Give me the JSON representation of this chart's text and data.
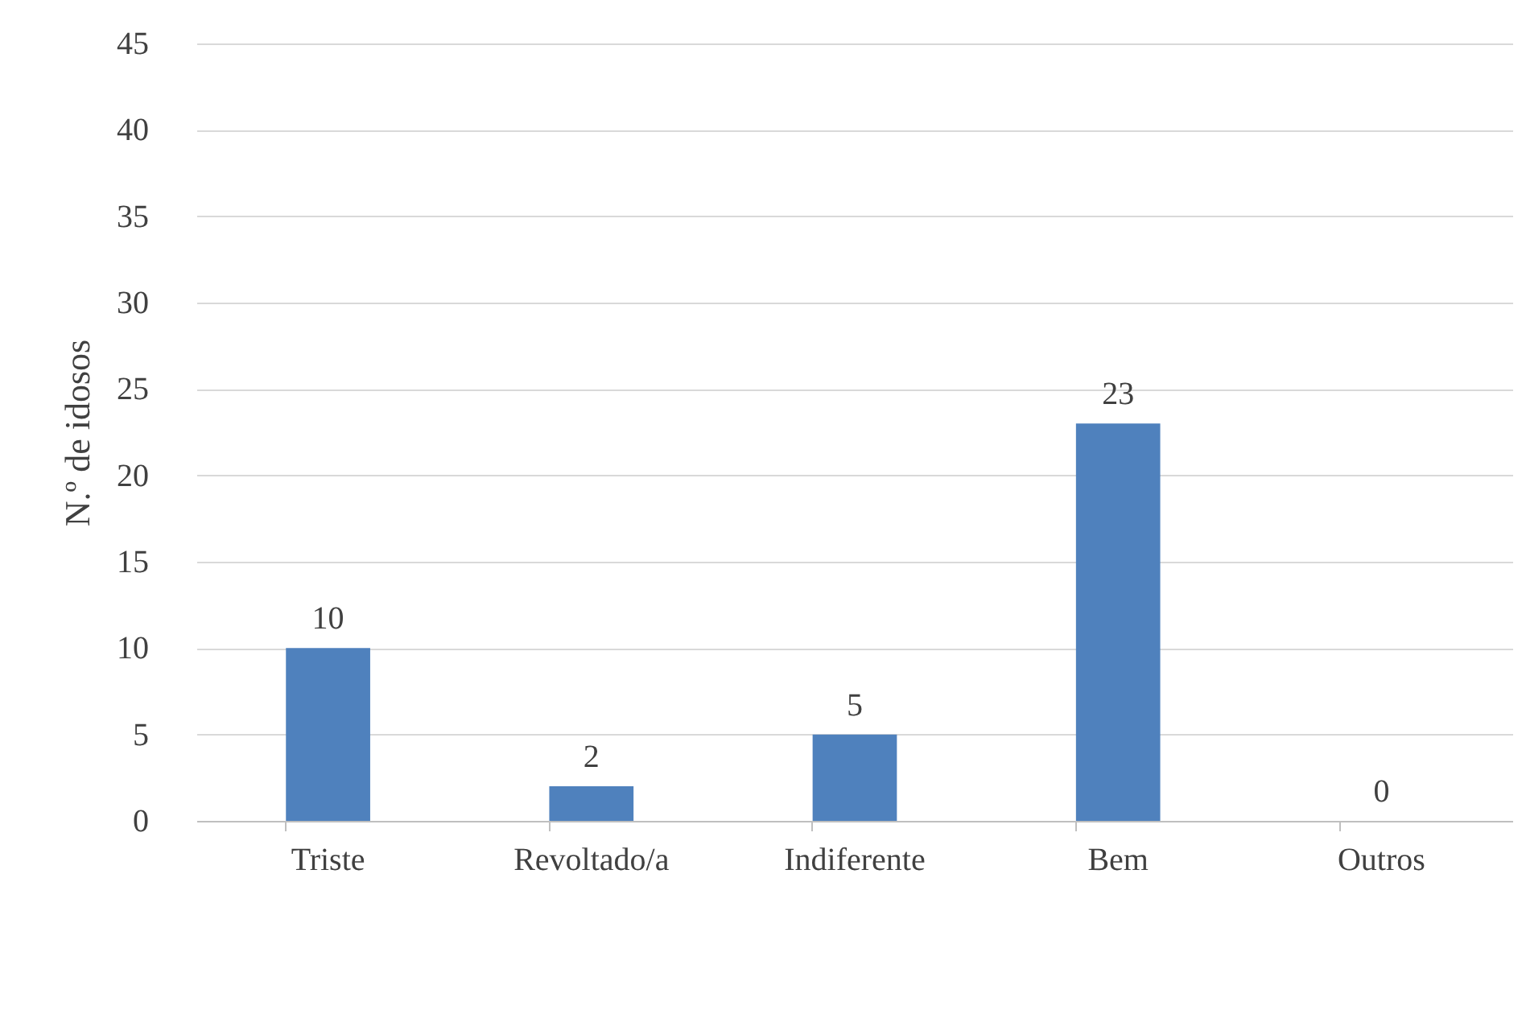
{
  "chart_data": {
    "type": "bar",
    "ylabel": "N.º de idosos",
    "categories": [
      "Triste",
      "Revoltado/a",
      "Indiferente",
      "Bem",
      "Outros"
    ],
    "values": [
      10,
      2,
      5,
      23,
      0
    ],
    "color": "#4f81bd",
    "ylim": [
      0,
      45
    ],
    "yticks": [
      0,
      5,
      10,
      15,
      20,
      25,
      30,
      35,
      40,
      45
    ],
    "grid": "y",
    "data_labels": true
  }
}
